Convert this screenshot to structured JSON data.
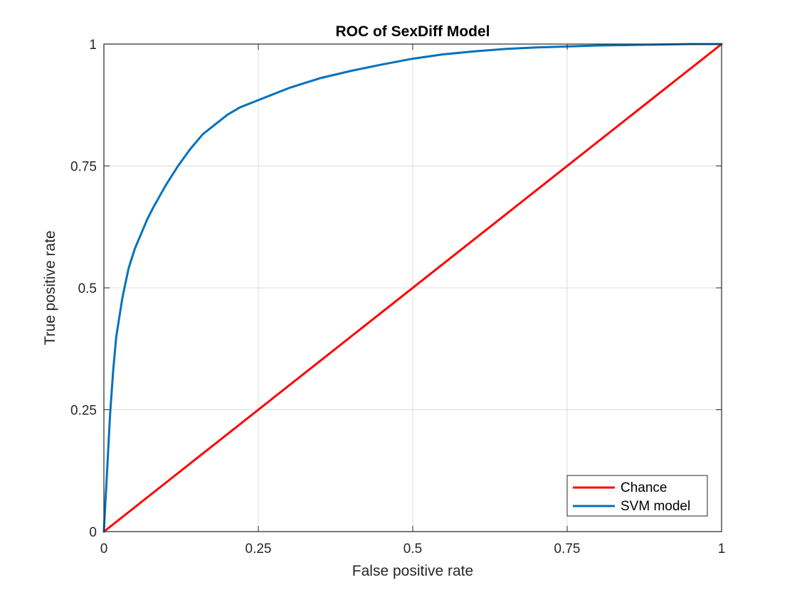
{
  "chart_data": {
    "type": "line",
    "title": "ROC of SexDiff Model",
    "xlabel": "False positive rate",
    "ylabel": "True positive rate",
    "xlim": [
      0,
      1
    ],
    "ylim": [
      0,
      1
    ],
    "xticks": [
      0,
      0.25,
      0.5,
      0.75,
      1
    ],
    "yticks": [
      0,
      0.25,
      0.5,
      0.75,
      1
    ],
    "xtick_labels": [
      "0",
      "0.25",
      "0.5",
      "0.75",
      "1"
    ],
    "ytick_labels": [
      "0",
      "0.25",
      "0.5",
      "0.75",
      "1"
    ],
    "grid": true,
    "legend_position": "bottom-right",
    "series": [
      {
        "name": "Chance",
        "color": "#ff0000",
        "x": [
          0,
          1
        ],
        "y": [
          0,
          1
        ]
      },
      {
        "name": "SVM model",
        "color": "#0072bd",
        "x": [
          0,
          0.002,
          0.005,
          0.01,
          0.015,
          0.02,
          0.03,
          0.04,
          0.05,
          0.06,
          0.07,
          0.08,
          0.1,
          0.12,
          0.14,
          0.16,
          0.18,
          0.2,
          0.22,
          0.25,
          0.3,
          0.35,
          0.4,
          0.45,
          0.5,
          0.55,
          0.6,
          0.65,
          0.7,
          0.75,
          0.8,
          0.85,
          0.9,
          0.95,
          1
        ],
        "y": [
          0,
          0.05,
          0.12,
          0.24,
          0.33,
          0.4,
          0.48,
          0.54,
          0.58,
          0.61,
          0.64,
          0.665,
          0.71,
          0.75,
          0.785,
          0.815,
          0.835,
          0.855,
          0.87,
          0.885,
          0.91,
          0.93,
          0.945,
          0.958,
          0.97,
          0.979,
          0.985,
          0.99,
          0.993,
          0.995,
          0.997,
          0.998,
          0.999,
          1,
          1
        ]
      }
    ]
  }
}
